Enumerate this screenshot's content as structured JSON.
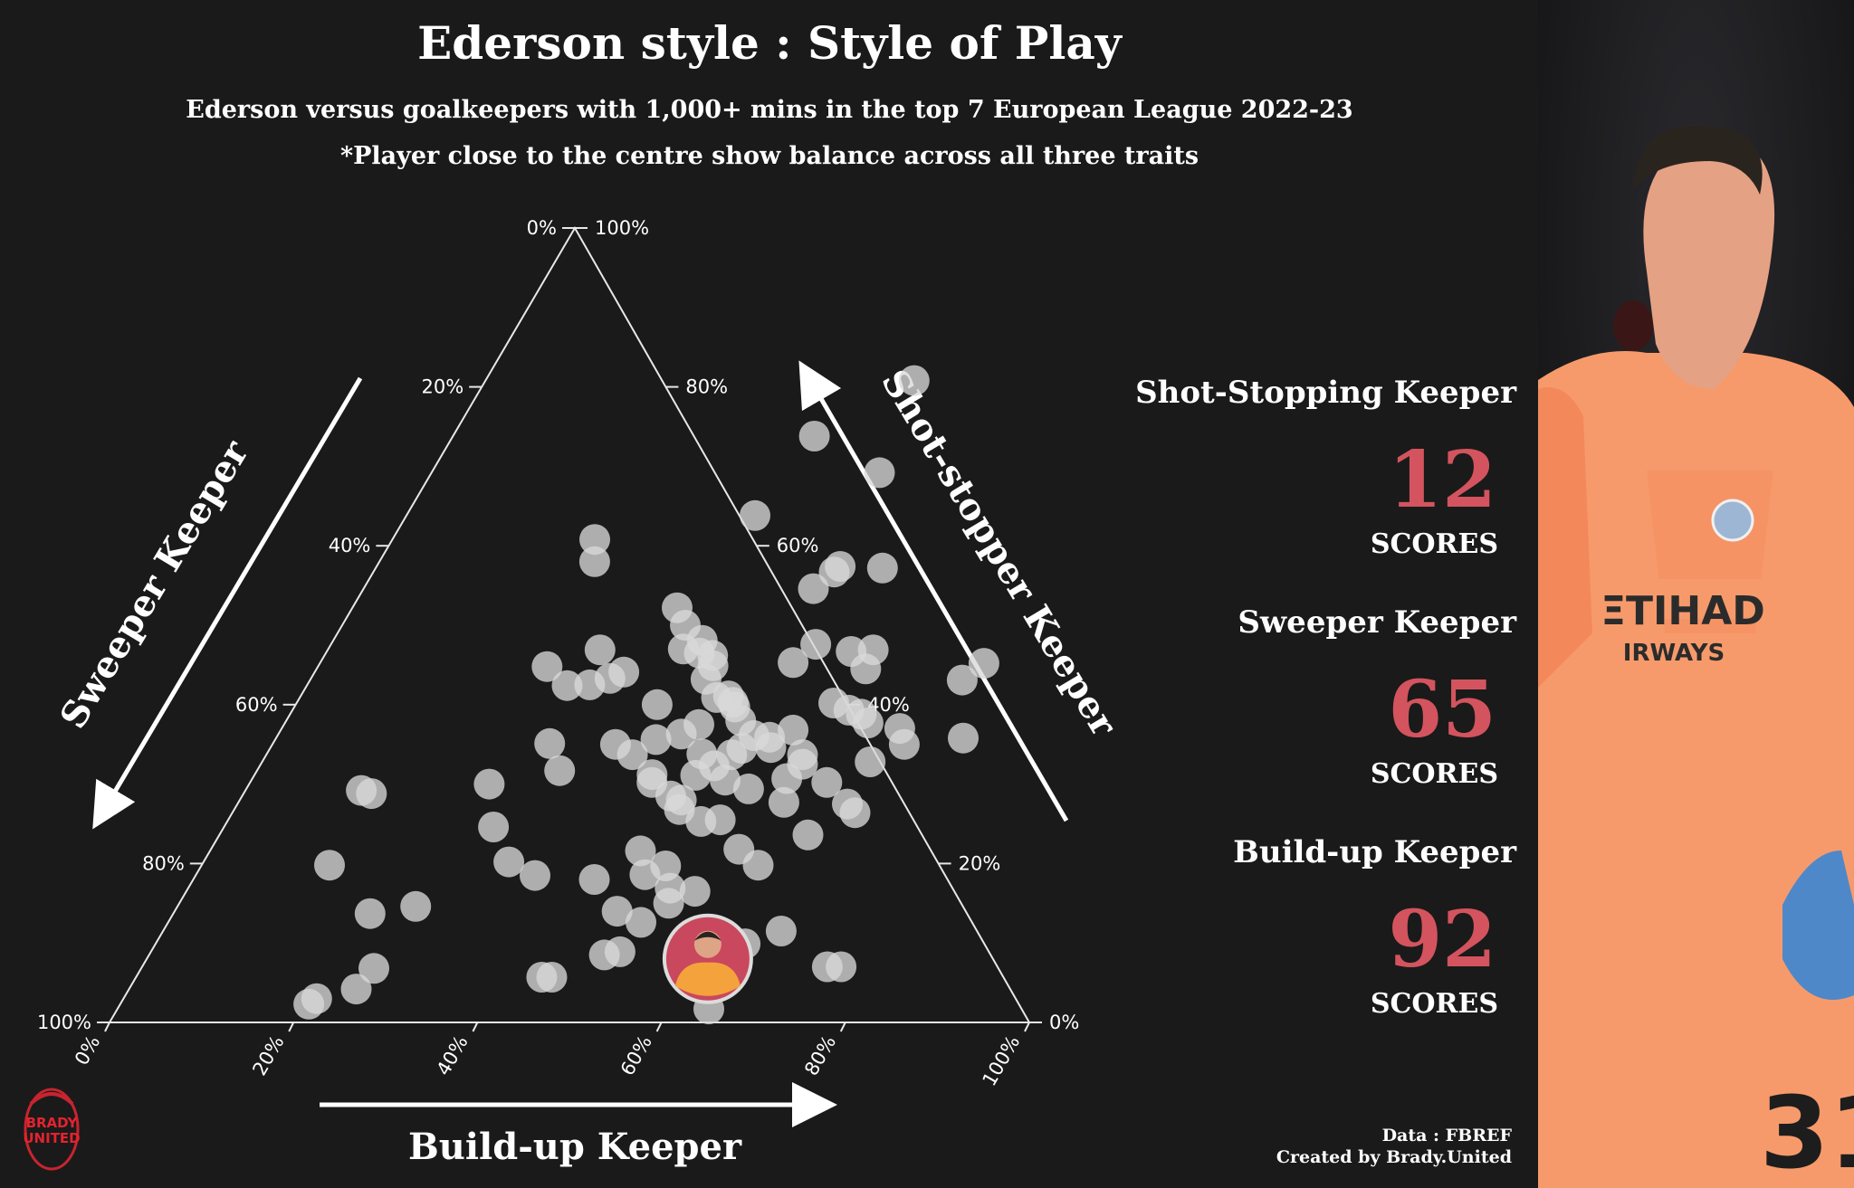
{
  "title": "Ederson style : Style of Play",
  "subtitle": "Ederson versus goalkeepers with 1,000+ mins in the top 7 European League 2022-23",
  "note": "*Player close to the centre show balance across all three traits",
  "stats": [
    {
      "label": "Shot-Stopping Keeper",
      "value": "12",
      "unit": "SCORES"
    },
    {
      "label": "Sweeper Keeper",
      "value": "65",
      "unit": "SCORES"
    },
    {
      "label": "Build-up Keeper",
      "value": "92",
      "unit": "SCORES"
    }
  ],
  "credits": {
    "data": "Data : FBREF",
    "created": "Created by Brady.United"
  },
  "logo_text": [
    "BRADY",
    "UNITED"
  ],
  "colors": {
    "background": "#1a1a1a",
    "points": "#d9d9d9",
    "accent": "#d3545e",
    "highlight": "#f4a23c"
  },
  "chart_data": {
    "type": "scatter",
    "subtype": "ternary",
    "axes": {
      "bottom": {
        "title": "Build-up Keeper",
        "ticks": [
          "0%",
          "20%",
          "40%",
          "60%",
          "80%",
          "100%"
        ]
      },
      "left": {
        "title": "Sweeper Keeper",
        "ticks": [
          "0%",
          "20%",
          "40%",
          "60%",
          "80%",
          "100%"
        ]
      },
      "right": {
        "title": "Shot-stopper Keeper",
        "ticks": [
          "100%",
          "80%",
          "60%",
          "40%",
          "20%",
          "0%"
        ]
      }
    },
    "components": [
      "build_up",
      "shot_stopper",
      "sweeper"
    ],
    "highlight": {
      "name": "Ederson",
      "build_up": 0.61,
      "shot_stopper": 0.08,
      "sweeper": 0.31
    },
    "points": [
      [
        0.466,
        0.808,
        -0.274
      ],
      [
        0.393,
        0.738,
        -0.131
      ],
      [
        0.487,
        0.692,
        -0.179
      ],
      [
        0.379,
        0.638,
        -0.017
      ],
      [
        0.22,
        0.608,
        0.172
      ],
      [
        0.234,
        0.58,
        0.186
      ],
      [
        0.551,
        0.572,
        -0.123
      ],
      [
        0.504,
        0.574,
        -0.078
      ],
      [
        0.501,
        0.567,
        -0.068
      ],
      [
        0.489,
        0.546,
        -0.035
      ],
      [
        0.373,
        0.5,
        0.127
      ],
      [
        0.353,
        0.522,
        0.125
      ],
      [
        0.401,
        0.481,
        0.118
      ],
      [
        0.406,
        0.465,
        0.129
      ],
      [
        0.386,
        0.47,
        0.144
      ],
      [
        0.422,
        0.462,
        0.116
      ],
      [
        0.429,
        0.449,
        0.122
      ],
      [
        0.527,
        0.476,
        -0.003
      ],
      [
        0.514,
        0.453,
        0.033
      ],
      [
        0.57,
        0.467,
        -0.037
      ],
      [
        0.593,
        0.469,
        -0.062
      ],
      [
        0.597,
        0.445,
        -0.042
      ],
      [
        0.722,
        0.452,
        -0.174
      ],
      [
        0.709,
        0.431,
        -0.14
      ],
      [
        0.296,
        0.469,
        0.235
      ],
      [
        0.249,
        0.448,
        0.303
      ],
      [
        0.283,
        0.424,
        0.293
      ],
      [
        0.307,
        0.425,
        0.268
      ],
      [
        0.325,
        0.433,
        0.242
      ],
      [
        0.336,
        0.441,
        0.223
      ],
      [
        0.43,
        0.432,
        0.138
      ],
      [
        0.393,
        0.4,
        0.207
      ],
      [
        0.453,
        0.409,
        0.138
      ],
      [
        0.465,
        0.411,
        0.124
      ],
      [
        0.474,
        0.403,
        0.123
      ],
      [
        0.479,
        0.397,
        0.124
      ],
      [
        0.494,
        0.38,
        0.126
      ],
      [
        0.584,
        0.402,
        0.014
      ],
      [
        0.605,
        0.393,
        0.002
      ],
      [
        0.621,
        0.388,
        -0.009
      ],
      [
        0.634,
        0.377,
        -0.011
      ],
      [
        0.672,
        0.37,
        -0.042
      ],
      [
        0.687,
        0.35,
        -0.037
      ],
      [
        0.747,
        0.358,
        -0.105
      ],
      [
        0.301,
        0.351,
        0.348
      ],
      [
        0.373,
        0.35,
        0.277
      ],
      [
        0.398,
        0.337,
        0.265
      ],
      [
        0.414,
        0.356,
        0.23
      ],
      [
        0.438,
        0.363,
        0.199
      ],
      [
        0.451,
        0.375,
        0.174
      ],
      [
        0.473,
        0.338,
        0.189
      ],
      [
        0.506,
        0.337,
        0.157
      ],
      [
        0.513,
        0.345,
        0.142
      ],
      [
        0.518,
        0.361,
        0.121
      ],
      [
        0.536,
        0.359,
        0.105
      ],
      [
        0.544,
        0.346,
        0.11
      ],
      [
        0.557,
        0.368,
        0.075
      ],
      [
        0.583,
        0.337,
        0.08
      ],
      [
        0.589,
        0.325,
        0.086
      ],
      [
        0.661,
        0.328,
        0.011
      ],
      [
        0.126,
        0.292,
        0.582
      ],
      [
        0.139,
        0.288,
        0.573
      ],
      [
        0.261,
        0.3,
        0.439
      ],
      [
        0.329,
        0.317,
        0.354
      ],
      [
        0.432,
        0.312,
        0.256
      ],
      [
        0.437,
        0.302,
        0.261
      ],
      [
        0.48,
        0.311,
        0.209
      ],
      [
        0.494,
        0.323,
        0.183
      ],
      [
        0.515,
        0.305,
        0.18
      ],
      [
        0.546,
        0.294,
        0.16
      ],
      [
        0.581,
        0.307,
        0.112
      ],
      [
        0.627,
        0.302,
        0.071
      ],
      [
        0.663,
        0.275,
        0.062
      ],
      [
        0.677,
        0.264,
        0.059
      ],
      [
        0.593,
        0.277,
        0.13
      ],
      [
        0.484,
        0.268,
        0.248
      ],
      [
        0.466,
        0.285,
        0.249
      ],
      [
        0.48,
        0.28,
        0.24
      ],
      [
        0.293,
        0.246,
        0.461
      ],
      [
        0.515,
        0.253,
        0.232
      ],
      [
        0.535,
        0.255,
        0.21
      ],
      [
        0.64,
        0.236,
        0.124
      ],
      [
        0.468,
        0.216,
        0.316
      ],
      [
        0.332,
        0.202,
        0.466
      ],
      [
        0.369,
        0.185,
        0.446
      ],
      [
        0.436,
        0.18,
        0.384
      ],
      [
        0.488,
        0.186,
        0.326
      ],
      [
        0.505,
        0.197,
        0.298
      ],
      [
        0.574,
        0.218,
        0.208
      ],
      [
        0.605,
        0.198,
        0.197
      ],
      [
        0.139,
        0.198,
        0.663
      ],
      [
        0.524,
        0.169,
        0.307
      ],
      [
        0.532,
        0.15,
        0.318
      ],
      [
        0.553,
        0.165,
        0.282
      ],
      [
        0.214,
        0.137,
        0.649
      ],
      [
        0.259,
        0.146,
        0.595
      ],
      [
        0.481,
        0.14,
        0.379
      ],
      [
        0.514,
        0.126,
        0.36
      ],
      [
        0.672,
        0.115,
        0.213
      ],
      [
        0.575,
        0.1,
        0.325
      ],
      [
        0.641,
        0.099,
        0.26
      ],
      [
        0.51,
        0.089,
        0.401
      ],
      [
        0.495,
        0.085,
        0.42
      ],
      [
        0.745,
        0.07,
        0.185
      ],
      [
        0.76,
        0.07,
        0.17
      ],
      [
        0.253,
        0.068,
        0.679
      ],
      [
        0.441,
        0.057,
        0.502
      ],
      [
        0.452,
        0.057,
        0.491
      ],
      [
        0.247,
        0.042,
        0.711
      ],
      [
        0.21,
        0.03,
        0.76
      ],
      [
        0.205,
        0.023,
        0.772
      ],
      [
        0.643,
        0.017,
        0.34
      ]
    ]
  }
}
